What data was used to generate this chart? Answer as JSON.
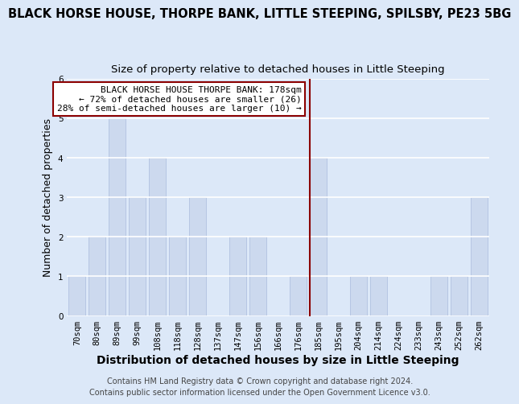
{
  "title": "BLACK HORSE HOUSE, THORPE BANK, LITTLE STEEPING, SPILSBY, PE23 5BG",
  "subtitle": "Size of property relative to detached houses in Little Steeping",
  "xlabel": "Distribution of detached houses by size in Little Steeping",
  "ylabel": "Number of detached properties",
  "bar_labels": [
    "70sqm",
    "80sqm",
    "89sqm",
    "99sqm",
    "108sqm",
    "118sqm",
    "128sqm",
    "137sqm",
    "147sqm",
    "156sqm",
    "166sqm",
    "176sqm",
    "185sqm",
    "195sqm",
    "204sqm",
    "214sqm",
    "224sqm",
    "233sqm",
    "243sqm",
    "252sqm",
    "262sqm"
  ],
  "bar_values": [
    1,
    2,
    5,
    3,
    4,
    2,
    3,
    0,
    2,
    2,
    0,
    1,
    4,
    0,
    1,
    1,
    0,
    0,
    1,
    1,
    3
  ],
  "bar_color": "#ccd9ee",
  "highlight_index": 12,
  "highlight_line_color": "#8b0000",
  "ylim": [
    0,
    6
  ],
  "yticks": [
    0,
    1,
    2,
    3,
    4,
    5,
    6
  ],
  "annotation_title": "BLACK HORSE HOUSE THORPE BANK: 178sqm",
  "annotation_line1": "← 72% of detached houses are smaller (26)",
  "annotation_line2": "28% of semi-detached houses are larger (10) →",
  "footer1": "Contains HM Land Registry data © Crown copyright and database right 2024.",
  "footer2": "Contains public sector information licensed under the Open Government Licence v3.0.",
  "bg_color": "#dce8f8",
  "plot_bg_color": "#dce8f8",
  "grid_color": "#ffffff",
  "title_fontsize": 10.5,
  "subtitle_fontsize": 9.5,
  "xlabel_fontsize": 10,
  "ylabel_fontsize": 9,
  "tick_fontsize": 7.5,
  "annotation_fontsize": 8,
  "footer_fontsize": 7
}
